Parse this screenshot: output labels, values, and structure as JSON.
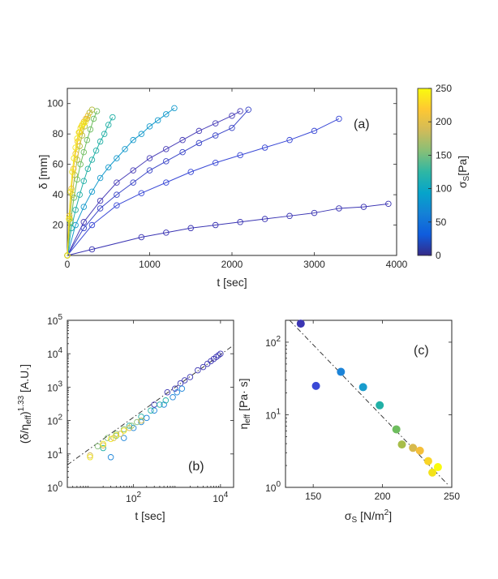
{
  "chart_data": [
    {
      "panel": "(a)",
      "type": "scatter",
      "xlabel": "t [sec]",
      "ylabel": "δ [mm]",
      "xlim": [
        0,
        4000
      ],
      "ylim": [
        0,
        110
      ],
      "xticks": [
        0,
        1000,
        2000,
        3000,
        4000
      ],
      "yticks": [
        20,
        40,
        60,
        80,
        100
      ],
      "colorbar": {
        "label": "σ",
        "label_sub": "S",
        "label_unit": "[Pa]",
        "range": [
          0,
          250
        ],
        "ticks": [
          0,
          50,
          100,
          150,
          200,
          250
        ],
        "colors": [
          "#352a87",
          "#0f5cdd",
          "#1481d6",
          "#06a4ca",
          "#2eb7a4",
          "#87bf77",
          "#d1bb59",
          "#fec832",
          "#f9fb0e"
        ]
      },
      "series": [
        {
          "sigma": 140,
          "color": "#3b35b3",
          "t": [
            0,
            300,
            900,
            1200,
            1500,
            1800,
            2100,
            2400,
            2700,
            3000,
            3300,
            3600,
            3900
          ],
          "delta": [
            0,
            4,
            12,
            15,
            18,
            20,
            22,
            24,
            26,
            28,
            31,
            32,
            34
          ]
        },
        {
          "sigma": 152,
          "color": "#3a49d6",
          "t": [
            0,
            300,
            600,
            900,
            1200,
            1500,
            1800,
            2100,
            2400,
            2700,
            3000,
            3300
          ],
          "delta": [
            0,
            20,
            33,
            41,
            48,
            55,
            61,
            66,
            71,
            76,
            82,
            90
          ]
        },
        {
          "sigma": 160,
          "color": "#3b46c8",
          "t": [
            0,
            200,
            400,
            600,
            800,
            1000,
            1200,
            1400,
            1600,
            1800,
            2000,
            2200
          ],
          "delta": [
            0,
            18,
            31,
            40,
            48,
            56,
            62,
            68,
            74,
            79,
            84,
            96
          ]
        },
        {
          "sigma": 170,
          "color": "#4a3fb8",
          "t": [
            0,
            200,
            400,
            600,
            800,
            1000,
            1200,
            1400,
            1600,
            1800,
            2000,
            2100
          ],
          "delta": [
            0,
            22,
            36,
            48,
            56,
            64,
            70,
            76,
            82,
            87,
            92,
            95
          ]
        },
        {
          "sigma": 186,
          "color": "#199ccd",
          "t": [
            0,
            100,
            200,
            300,
            400,
            500,
            600,
            700,
            800,
            900,
            1000,
            1100,
            1200,
            1300
          ],
          "delta": [
            0,
            20,
            32,
            42,
            51,
            58,
            64,
            70,
            76,
            80,
            85,
            89,
            93,
            97
          ]
        },
        {
          "sigma": 198,
          "color": "#22b0a6",
          "t": [
            0,
            50,
            100,
            150,
            200,
            250,
            300,
            350,
            400,
            450,
            500,
            550
          ],
          "delta": [
            0,
            18,
            30,
            40,
            49,
            57,
            63,
            69,
            75,
            80,
            86,
            91
          ]
        },
        {
          "sigma": 210,
          "color": "#6ebd5e",
          "t": [
            0,
            40,
            80,
            120,
            160,
            200,
            240,
            280,
            320,
            360
          ],
          "delta": [
            0,
            22,
            38,
            50,
            60,
            68,
            76,
            83,
            90,
            95
          ]
        },
        {
          "sigma": 222,
          "color": "#b4bb3c",
          "t": [
            0,
            30,
            60,
            90,
            120,
            150,
            180,
            210,
            240,
            270,
            300
          ],
          "delta": [
            0,
            24,
            40,
            53,
            63,
            72,
            79,
            85,
            90,
            94,
            96
          ]
        },
        {
          "sigma": 235,
          "color": "#f2c12d",
          "t": [
            0,
            25,
            50,
            75,
            100,
            125,
            150,
            175,
            200,
            225,
            250
          ],
          "delta": [
            0,
            26,
            44,
            57,
            67,
            75,
            81,
            85,
            88,
            90,
            92
          ]
        },
        {
          "sigma": 242,
          "color": "#f1e51d",
          "t": [
            0,
            20,
            40,
            60,
            80,
            100,
            120,
            140,
            160,
            180,
            200,
            220
          ],
          "delta": [
            0,
            24,
            42,
            55,
            64,
            71,
            77,
            81,
            84,
            86,
            87,
            88
          ]
        }
      ]
    },
    {
      "panel": "(b)",
      "type": "scatter",
      "scale": "log-log",
      "xlabel": "t [sec]",
      "ylabel": "(δ/η_eff)^1.33 [A.U.]",
      "ylabel_parts": {
        "open": "(",
        "delta": "δ/η",
        "sub": "eff",
        "close": ")",
        "exp": "1.33",
        "unit": " [A.U.]"
      },
      "xlim": [
        3,
        20000
      ],
      "ylim": [
        1,
        100000
      ],
      "xticks": [
        {
          "base": "10",
          "exp": "2",
          "value": 100
        },
        {
          "base": "10",
          "exp": "4",
          "value": 10000
        }
      ],
      "yticks": [
        {
          "base": "10",
          "exp": "0",
          "value": 1
        },
        {
          "base": "10",
          "exp": "1",
          "value": 10
        },
        {
          "base": "10",
          "exp": "2",
          "value": 100
        },
        {
          "base": "10",
          "exp": "3",
          "value": 1000
        },
        {
          "base": "10",
          "exp": "4",
          "value": 10000
        },
        {
          "base": "10",
          "exp": "5",
          "value": 100000
        }
      ],
      "fit_line": {
        "style": "dash-dot",
        "x": [
          3,
          20000
        ],
        "y": [
          4.7,
          18000
        ]
      },
      "point_groups": [
        {
          "color": "#3b35b3",
          "x": [
            300,
            600,
            900,
            1200,
            1500,
            2000,
            3000,
            4000,
            5000,
            6000,
            7000,
            8000,
            9000,
            10000
          ],
          "y": [
            300,
            700,
            900,
            1300,
            1600,
            2000,
            3200,
            4000,
            5000,
            6000,
            7000,
            8000,
            9000,
            10000
          ]
        },
        {
          "color": "#1c84d8",
          "x": [
            30,
            60,
            100,
            150,
            200,
            300,
            500,
            800,
            1000,
            1300
          ],
          "y": [
            8,
            30,
            60,
            90,
            120,
            200,
            300,
            500,
            700,
            900
          ]
        },
        {
          "color": "#22b0a6",
          "x": [
            20,
            40,
            80,
            150,
            250,
            400,
            550
          ],
          "y": [
            15,
            35,
            70,
            130,
            200,
            300,
            400
          ]
        },
        {
          "color": "#87bf77",
          "x": [
            15,
            25,
            40,
            60,
            90,
            120
          ],
          "y": [
            17,
            30,
            40,
            55,
            70,
            90
          ]
        },
        {
          "color": "#d7b94c",
          "x": [
            10,
            20,
            35,
            50,
            80,
            150
          ],
          "y": [
            9,
            18,
            30,
            40,
            60,
            100
          ]
        },
        {
          "color": "#f1e51d",
          "x": [
            10,
            20,
            30,
            40,
            60
          ],
          "y": [
            8,
            20,
            28,
            36,
            50
          ]
        }
      ]
    },
    {
      "panel": "(c)",
      "type": "scatter",
      "scale": "semilog-y",
      "xlabel": "σ_S [N/m²]",
      "xlabel_parts": {
        "sigma": "σ",
        "sub": "S",
        "unit": " [N/m",
        "sup": "2",
        "close": "]"
      },
      "ylabel": "η_eff [Pa·s]",
      "ylabel_parts": {
        "eta": "η",
        "sub": "eff",
        "unit": " [Pa· s]"
      },
      "xlim": [
        130,
        250
      ],
      "ylim": [
        1,
        200
      ],
      "xticks": [
        150,
        200,
        250
      ],
      "yticks": [
        {
          "base": "10",
          "exp": "0",
          "value": 1
        },
        {
          "base": "10",
          "exp": "1",
          "value": 10
        },
        {
          "base": "10",
          "exp": "2",
          "value": 100
        }
      ],
      "fit_line": {
        "style": "dash-dot",
        "x": [
          133,
          247
        ],
        "y": [
          200,
          1.1
        ]
      },
      "points": [
        {
          "x": 141,
          "y": 180,
          "color": "#3b35b3"
        },
        {
          "x": 152,
          "y": 25,
          "color": "#3a49d6"
        },
        {
          "x": 170,
          "y": 39,
          "color": "#1c84d8"
        },
        {
          "x": 186,
          "y": 24,
          "color": "#199ccd"
        },
        {
          "x": 198,
          "y": 13.5,
          "color": "#22b0a6"
        },
        {
          "x": 210,
          "y": 6.3,
          "color": "#6ebd5e"
        },
        {
          "x": 214,
          "y": 3.9,
          "color": "#a7bd49"
        },
        {
          "x": 222,
          "y": 3.5,
          "color": "#d7b94c"
        },
        {
          "x": 227,
          "y": 3.2,
          "color": "#f5bf3a"
        },
        {
          "x": 233,
          "y": 2.3,
          "color": "#f9d426"
        },
        {
          "x": 236,
          "y": 1.6,
          "color": "#f3e21a"
        },
        {
          "x": 240,
          "y": 1.9,
          "color": "#f9fb0e"
        }
      ]
    }
  ]
}
